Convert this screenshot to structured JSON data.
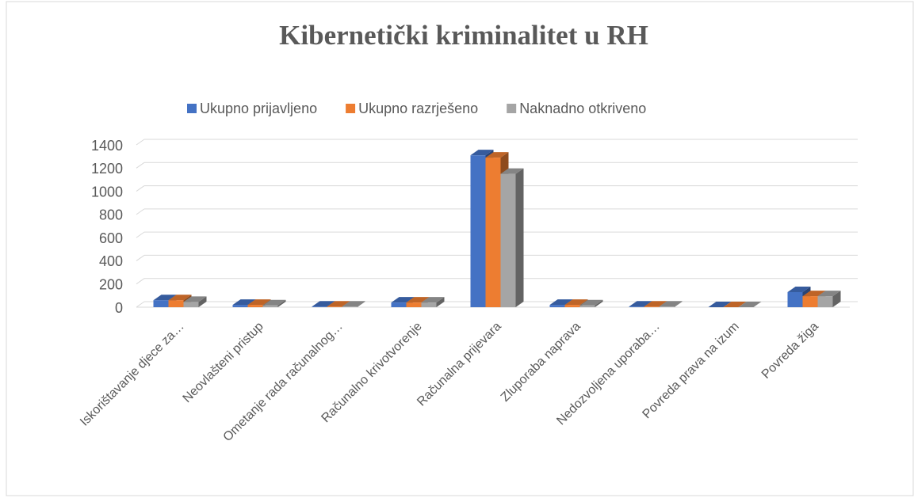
{
  "chart_data": {
    "type": "bar",
    "title": "Kibernetički kriminalitet u RH",
    "categories": [
      "Iskorištavanje djece za…",
      "Neovlašteni pristup",
      "Ometanje  rada računalnog…",
      "Računalno krivotvorenje",
      "Računalna prijevara",
      "Zluporaba naprava",
      "Nedozvoljena uporaba…",
      "Povreda prava na izum",
      "Povreda žiga"
    ],
    "series": [
      {
        "name": "Ukupno prijavljeno",
        "color": "#4472c4",
        "values": [
          60,
          20,
          5,
          40,
          1310,
          20,
          5,
          0,
          130
        ]
      },
      {
        "name": "Ukupno razrješeno",
        "color": "#ed7d31",
        "values": [
          60,
          20,
          5,
          40,
          1290,
          20,
          5,
          0,
          95
        ]
      },
      {
        "name": "Naknadno otkriveno",
        "color": "#a5a5a5",
        "values": [
          45,
          15,
          5,
          40,
          1150,
          15,
          5,
          0,
          95
        ]
      }
    ],
    "ylim": [
      0,
      1400
    ],
    "yticks": [
      0,
      200,
      400,
      600,
      800,
      1000,
      1200,
      1400
    ],
    "grid": true,
    "legend": "top"
  }
}
